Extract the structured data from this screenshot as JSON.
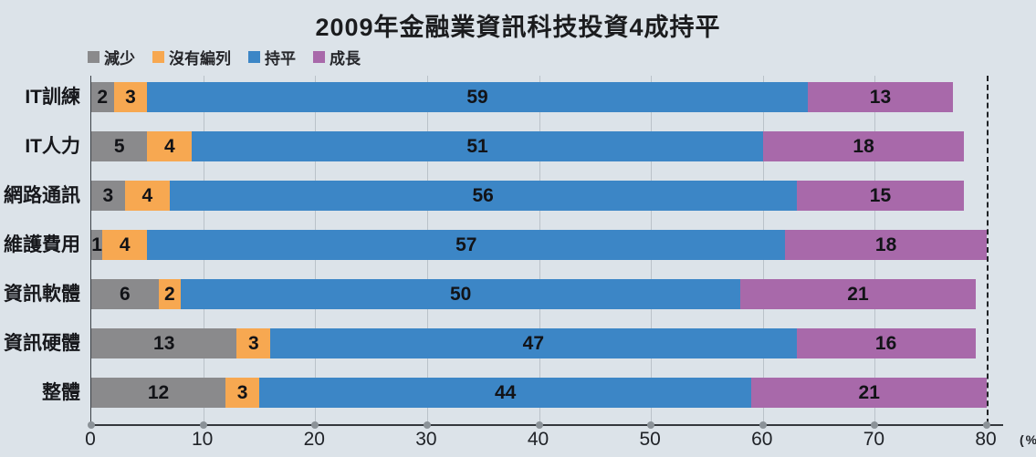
{
  "title": "2009年金融業資訊科技投資4成持平",
  "unit_label": "(%)",
  "colors": {
    "background": "#dce3e9",
    "axis": "#34383d",
    "grid": "#bac2c9",
    "reference_dash": "#1f2225",
    "tick_dot": "#8b9298"
  },
  "chart_data": {
    "type": "bar",
    "orientation": "horizontal",
    "stacked": true,
    "title": "2009年金融業資訊科技投資4成持平",
    "categories": [
      "IT訓練",
      "IT人力",
      "網路通訊",
      "維護費用",
      "資訊軟體",
      "資訊硬體",
      "整體"
    ],
    "series": [
      {
        "name": "減少",
        "color": "#8a8a8c",
        "values": [
          2,
          5,
          3,
          1,
          6,
          13,
          12
        ]
      },
      {
        "name": "沒有編列",
        "color": "#f7a851",
        "values": [
          3,
          4,
          4,
          4,
          2,
          3,
          3
        ]
      },
      {
        "name": "持平",
        "color": "#3c86c6",
        "values": [
          59,
          51,
          56,
          57,
          50,
          47,
          44
        ]
      },
      {
        "name": "成長",
        "color": "#a869aa",
        "values": [
          13,
          18,
          15,
          18,
          21,
          16,
          21
        ]
      }
    ],
    "xlabel": "(%)",
    "ylabel": "",
    "xlim": [
      0,
      80
    ],
    "xticks": [
      0,
      10,
      20,
      30,
      40,
      50,
      60,
      70,
      80
    ],
    "reference_line_x": 80,
    "grid": true,
    "legend_position": "top-left",
    "value_labels": "inside"
  }
}
